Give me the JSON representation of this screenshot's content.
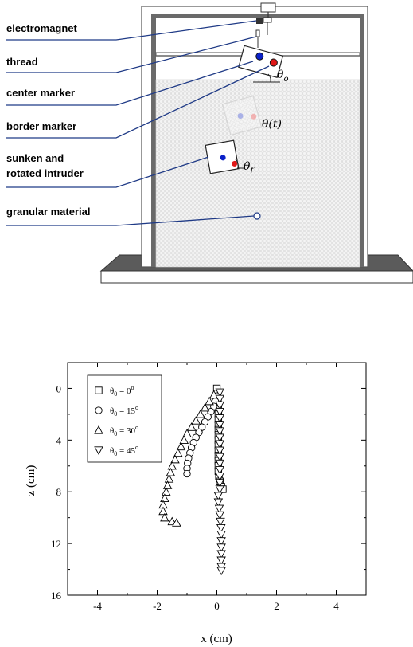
{
  "diagram": {
    "labels": {
      "electromagnet": "electromagnet",
      "thread": "thread",
      "center_marker": "center marker",
      "border_marker": "border marker",
      "sunken_line1": "sunken and",
      "sunken_line2": "rotated intruder",
      "granular": "granular material"
    },
    "angles": {
      "theta_o": "θ",
      "theta_o_sub": "o",
      "theta_t": "θ(t)",
      "theta_f": "θ",
      "theta_f_sub": "f"
    },
    "colors": {
      "blue": "#0b21c8",
      "red": "#e01818",
      "line": "#1f3a86",
      "frame": "#5a5a5a"
    }
  },
  "chart_data": {
    "type": "scatter",
    "xlabel": "x (cm)",
    "ylabel": "z (cm)",
    "xlim": [
      -5,
      5
    ],
    "ylim": [
      16,
      -2
    ],
    "xticks": [
      -4,
      -2,
      0,
      2,
      4
    ],
    "yticks": [
      0,
      4,
      8,
      12,
      16
    ],
    "legend_position": "top-left",
    "series": [
      {
        "name": "θ0 = 0°",
        "legend": {
          "sym": "θ",
          "sub": "0",
          "rest": " = 0",
          "sup": "o"
        },
        "marker": "square",
        "points": [
          [
            0,
            0
          ],
          [
            0.02,
            0.4
          ],
          [
            0.03,
            0.8
          ],
          [
            0.04,
            1.2
          ],
          [
            0.05,
            1.6
          ],
          [
            0.05,
            2.0
          ],
          [
            0.05,
            2.4
          ],
          [
            0.05,
            2.8
          ],
          [
            0.05,
            3.2
          ],
          [
            0.05,
            3.6
          ],
          [
            0.05,
            4.0
          ],
          [
            0.05,
            4.4
          ],
          [
            0.05,
            4.8
          ],
          [
            0.05,
            5.2
          ],
          [
            0.05,
            5.6
          ],
          [
            0.05,
            6.0
          ],
          [
            0.05,
            6.4
          ],
          [
            0.07,
            6.8
          ],
          [
            0.1,
            7.2
          ],
          [
            0.15,
            7.6
          ],
          [
            0.2,
            7.8
          ]
        ]
      },
      {
        "name": "θ0 = 15°",
        "legend": {
          "sym": "θ",
          "sub": "0",
          "rest": " = 15",
          "sup": "o"
        },
        "marker": "circle",
        "points": [
          [
            0,
            0.6
          ],
          [
            -0.05,
            1.0
          ],
          [
            -0.1,
            1.4
          ],
          [
            -0.2,
            1.8
          ],
          [
            -0.3,
            2.2
          ],
          [
            -0.4,
            2.6
          ],
          [
            -0.5,
            3.0
          ],
          [
            -0.6,
            3.4
          ],
          [
            -0.7,
            3.8
          ],
          [
            -0.78,
            4.2
          ],
          [
            -0.85,
            4.6
          ],
          [
            -0.9,
            5.0
          ],
          [
            -0.95,
            5.4
          ],
          [
            -0.98,
            5.8
          ],
          [
            -1.0,
            6.2
          ],
          [
            -1.0,
            6.6
          ]
        ]
      },
      {
        "name": "θ0 = 30°",
        "legend": {
          "sym": "θ",
          "sub": "0",
          "rest": " = 30",
          "sup": "o"
        },
        "marker": "triangle-up",
        "points": [
          [
            -0.1,
            0.5
          ],
          [
            -0.25,
            1.0
          ],
          [
            -0.4,
            1.5
          ],
          [
            -0.55,
            2.0
          ],
          [
            -0.7,
            2.5
          ],
          [
            -0.85,
            3.0
          ],
          [
            -1.0,
            3.5
          ],
          [
            -1.1,
            4.0
          ],
          [
            -1.2,
            4.5
          ],
          [
            -1.3,
            5.0
          ],
          [
            -1.4,
            5.5
          ],
          [
            -1.5,
            6.0
          ],
          [
            -1.55,
            6.5
          ],
          [
            -1.6,
            7.0
          ],
          [
            -1.65,
            7.5
          ],
          [
            -1.7,
            8.0
          ],
          [
            -1.75,
            8.5
          ],
          [
            -1.8,
            9.0
          ],
          [
            -1.8,
            9.5
          ],
          [
            -1.75,
            10.0
          ],
          [
            -1.5,
            10.3
          ],
          [
            -1.35,
            10.4
          ]
        ]
      },
      {
        "name": "θ0 = 45°",
        "legend": {
          "sym": "θ",
          "sub": "0",
          "rest": " = 45",
          "sup": "o"
        },
        "marker": "triangle-down",
        "points": [
          [
            0.1,
            0.3
          ],
          [
            0.1,
            0.8
          ],
          [
            0.1,
            1.3
          ],
          [
            0.1,
            1.8
          ],
          [
            0.1,
            2.3
          ],
          [
            0.1,
            2.8
          ],
          [
            0.1,
            3.3
          ],
          [
            0.1,
            3.8
          ],
          [
            0.1,
            4.3
          ],
          [
            0.1,
            4.8
          ],
          [
            0.1,
            5.3
          ],
          [
            0.1,
            5.8
          ],
          [
            0.1,
            6.3
          ],
          [
            0.1,
            6.8
          ],
          [
            0.1,
            7.3
          ],
          [
            0.1,
            7.8
          ],
          [
            0.05,
            8.3
          ],
          [
            0.05,
            8.8
          ],
          [
            0.08,
            9.3
          ],
          [
            0.1,
            9.8
          ],
          [
            0.12,
            10.3
          ],
          [
            0.14,
            10.8
          ],
          [
            0.15,
            11.3
          ],
          [
            0.15,
            11.8
          ],
          [
            0.15,
            12.3
          ],
          [
            0.15,
            12.8
          ],
          [
            0.15,
            13.3
          ],
          [
            0.15,
            13.8
          ],
          [
            0.15,
            14.1
          ]
        ]
      }
    ]
  }
}
